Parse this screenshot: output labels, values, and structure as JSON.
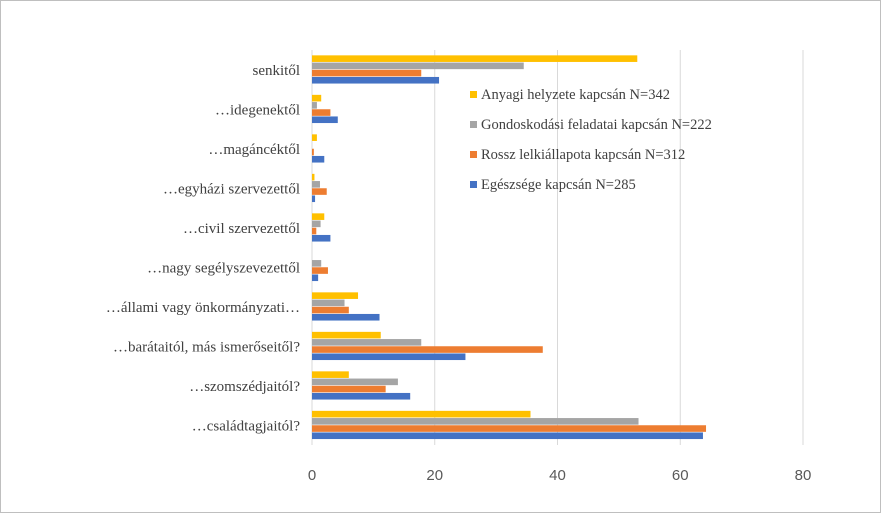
{
  "chart_data": {
    "type": "bar",
    "orientation": "horizontal",
    "categories": [
      "senkitől",
      "…idegenektől",
      "…magáncéktől",
      "…egyházi szervezettől",
      "…civil szervezettől",
      "…nagy segélyszevezettől",
      "…állami vagy önkormányzati…",
      "…barátaitól, más ismerőseitől?",
      "…szomszédjaitól?",
      "…családtagjaitól?"
    ],
    "series": [
      {
        "name": "Anyagi helyzete kapcsán N=342",
        "color": "#ffc000",
        "values": [
          53,
          1.5,
          0.8,
          0.4,
          2,
          0,
          7.5,
          11.2,
          6,
          35.6
        ]
      },
      {
        "name": "Gondoskodási feladatai kapcsán N=222",
        "color": "#a5a5a5",
        "values": [
          34.5,
          0.8,
          0,
          1.3,
          1.4,
          1.5,
          5.3,
          17.8,
          14,
          53.2
        ]
      },
      {
        "name": "Rossz lelkiállapota kapcsán N=312",
        "color": "#ed7d31",
        "values": [
          17.8,
          3,
          0.3,
          2.4,
          0.7,
          2.6,
          6,
          37.6,
          12,
          64.2
        ]
      },
      {
        "name": "Egészsége kapcsán N=285",
        "color": "#4472c4",
        "values": [
          20.7,
          4.2,
          2,
          0.5,
          3,
          1,
          11,
          25,
          16,
          63.7
        ]
      }
    ],
    "xlim": [
      0,
      80
    ],
    "xticks": [
      0,
      20,
      40,
      60,
      80
    ],
    "grid": true
  }
}
